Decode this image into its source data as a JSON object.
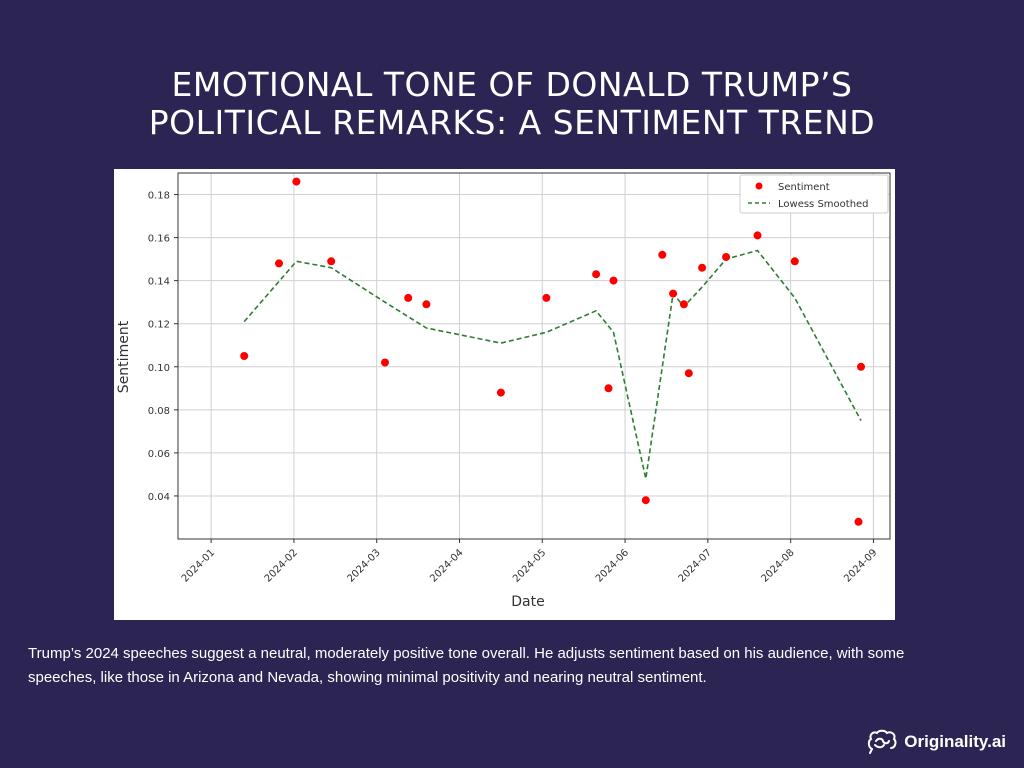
{
  "header": {
    "title_line1": "EMOTIONAL TONE OF DONALD TRUMP’S",
    "title_line2": "POLITICAL REMARKS: A SENTIMENT TREND"
  },
  "caption": "Trump’s 2024 speeches suggest a neutral, moderately positive tone overall. He adjusts sentiment based on his audience, with some speeches, like those in Arizona and Nevada, showing minimal positivity and nearing neutral sentiment.",
  "brand": {
    "name": "Originality.ai",
    "icon": "brain-icon"
  },
  "colors": {
    "background": "#2c2553",
    "scatter": "#ff0000",
    "smoothed": "#2e7d32"
  },
  "chart_data": {
    "type": "scatter",
    "title": "",
    "xlabel": "Date",
    "ylabel": "Sentiment",
    "x_ticks": [
      "2024-01",
      "2024-02",
      "2024-03",
      "2024-04",
      "2024-05",
      "2024-06",
      "2024-07",
      "2024-08",
      "2024-09"
    ],
    "y_ticks": [
      "0.04",
      "0.06",
      "0.08",
      "0.10",
      "0.12",
      "0.14",
      "0.16",
      "0.18"
    ],
    "xlim": [
      -0.4,
      8.2
    ],
    "ylim": [
      0.02,
      0.19
    ],
    "grid": true,
    "legend": {
      "position": "top-right",
      "entries": [
        "Sentiment",
        "Lowess Smoothed"
      ]
    },
    "series": [
      {
        "name": "Sentiment",
        "kind": "scatter",
        "points": [
          [
            0.4,
            0.105
          ],
          [
            0.82,
            0.148
          ],
          [
            1.03,
            0.186
          ],
          [
            1.45,
            0.149
          ],
          [
            2.1,
            0.102
          ],
          [
            2.38,
            0.132
          ],
          [
            2.6,
            0.129
          ],
          [
            3.5,
            0.088
          ],
          [
            4.05,
            0.132
          ],
          [
            4.65,
            0.143
          ],
          [
            4.8,
            0.09
          ],
          [
            4.86,
            0.14
          ],
          [
            5.25,
            0.038
          ],
          [
            5.45,
            0.152
          ],
          [
            5.58,
            0.134
          ],
          [
            5.71,
            0.129
          ],
          [
            5.77,
            0.097
          ],
          [
            5.93,
            0.146
          ],
          [
            6.22,
            0.151
          ],
          [
            6.6,
            0.161
          ],
          [
            7.05,
            0.149
          ],
          [
            7.82,
            0.028
          ],
          [
            7.85,
            0.1
          ]
        ]
      },
      {
        "name": "Lowess Smoothed",
        "kind": "line",
        "points": [
          [
            0.4,
            0.121
          ],
          [
            1.03,
            0.149
          ],
          [
            1.45,
            0.146
          ],
          [
            2.1,
            0.13
          ],
          [
            2.6,
            0.118
          ],
          [
            3.5,
            0.111
          ],
          [
            4.05,
            0.116
          ],
          [
            4.65,
            0.126
          ],
          [
            4.86,
            0.116
          ],
          [
            5.25,
            0.048
          ],
          [
            5.58,
            0.134
          ],
          [
            5.71,
            0.128
          ],
          [
            5.93,
            0.137
          ],
          [
            6.22,
            0.15
          ],
          [
            6.6,
            0.154
          ],
          [
            7.05,
            0.132
          ],
          [
            7.85,
            0.075
          ]
        ]
      }
    ]
  }
}
